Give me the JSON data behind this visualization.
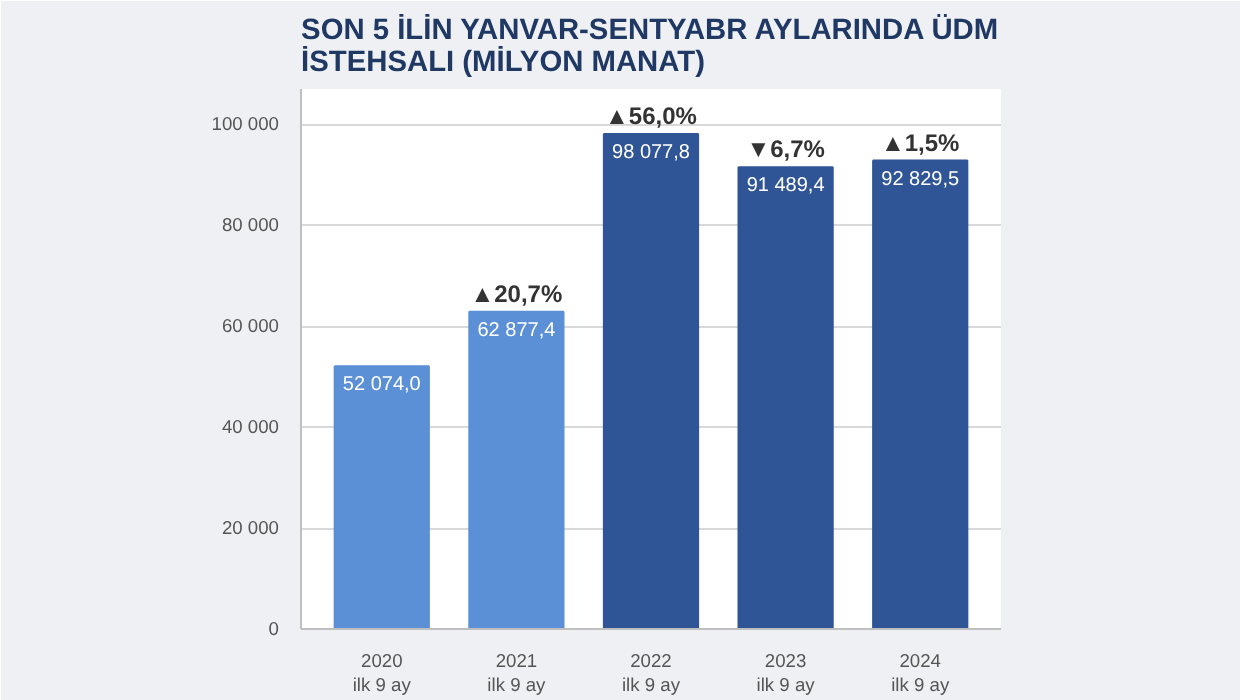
{
  "chart_data": {
    "type": "bar",
    "title": "SON 5 İLİN YANVAR-SENTYABR AYLARINDA ÜDM\nİSTEHSALI (MİLYON MANAT)",
    "categories": [
      "2020\nilk 9 ay",
      "2021\nilk 9 ay",
      "2022\nilk 9 ay",
      "2023\nilk 9 ay",
      "2024\nilk 9 ay"
    ],
    "values": [
      52074.0,
      62877.4,
      98077.8,
      91489.4,
      92829.5
    ],
    "colors": [
      "#5b8fd6",
      "#5b8fd6",
      "#2f5597",
      "#2f5597",
      "#2f5597"
    ],
    "value_labels": [
      "52 074,0",
      "62 877,4",
      "98 077,8",
      "91 489,4",
      "92 829,5"
    ],
    "annotations": [
      {
        "text": "▲20,7%",
        "x": "2021\nilk 9 ay",
        "y": 62877.4
      },
      {
        "text": "▲56,0%",
        "x": "2022\nilk 9 ay",
        "y": 98077.8
      },
      {
        "text": "▼6,7%",
        "x": "2023\nilk 9 ay",
        "y": 91489.4
      },
      {
        "text": "▲1,5%",
        "x": "2024\nilk 9 ay",
        "y": 92829.5
      }
    ],
    "ylim": [
      0,
      107000
    ],
    "yticks": [
      {
        "value": 0,
        "label": "0"
      },
      {
        "value": 20000,
        "label": "20 000"
      },
      {
        "value": 40000,
        "label": "40 000"
      },
      {
        "value": 60000,
        "label": "60 000"
      },
      {
        "value": 80000,
        "label": "80 000"
      },
      {
        "value": 100000,
        "label": "100 000"
      }
    ],
    "grid": "y"
  }
}
